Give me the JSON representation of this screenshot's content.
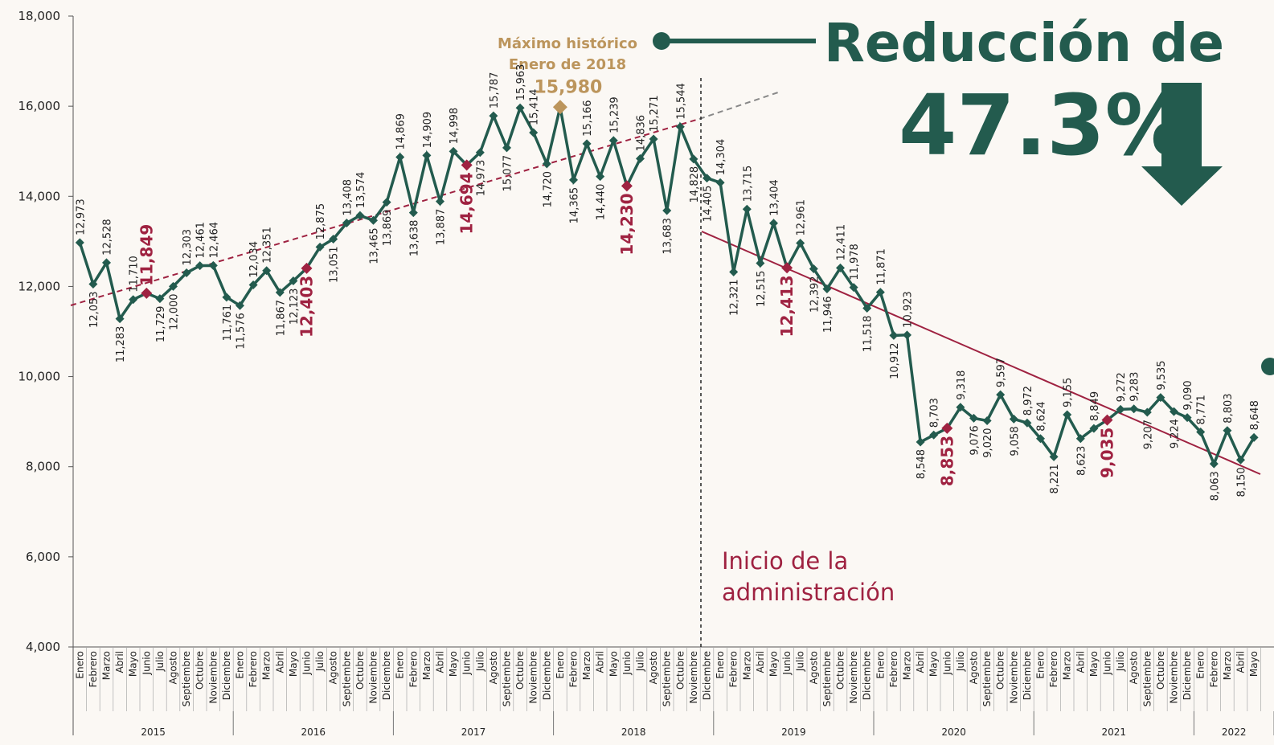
{
  "chart_data": {
    "type": "line",
    "categories": [
      "Enero",
      "Febrero",
      "Marzo",
      "Abril",
      "Mayo",
      "Junio",
      "Julio",
      "Agosto",
      "Septiembre",
      "Octubre",
      "Noviembre",
      "Diciembre",
      "Enero",
      "Febrero",
      "Marzo",
      "Abril",
      "Mayo",
      "Junio",
      "Julio",
      "Agosto",
      "Septiembre",
      "Octubre",
      "Noviembre",
      "Diciembre",
      "Enero",
      "Febrero",
      "Marzo",
      "Abril",
      "Mayo",
      "Junio",
      "Julio",
      "Agosto",
      "Septiembre",
      "Octubre",
      "Noviembre",
      "Diciembre",
      "Enero",
      "Febrero",
      "Marzo",
      "Abril",
      "Mayo",
      "Junio",
      "Julio",
      "Agosto",
      "Septiembre",
      "Octubre",
      "Noviembre",
      "Diciembre",
      "Enero",
      "Febrero",
      "Marzo",
      "Abril",
      "Mayo",
      "Junio",
      "Julio",
      "Agosto",
      "Septiembre",
      "Octubre",
      "Noviembre",
      "Diciembre",
      "Enero",
      "Febrero",
      "Marzo",
      "Abril",
      "Mayo",
      "Junio",
      "Julio",
      "Agosto",
      "Septiembre",
      "Octubre",
      "Noviembre",
      "Diciembre",
      "Enero",
      "Febrero",
      "Marzo",
      "Abril",
      "Mayo",
      "Junio",
      "Julio",
      "Agosto",
      "Septiembre",
      "Octubre",
      "Noviembre",
      "Diciembre",
      "Enero",
      "Febrero",
      "Marzo",
      "Abril",
      "Mayo"
    ],
    "year_labels": [
      "2015",
      "2016",
      "2017",
      "2018",
      "2019",
      "2020",
      "2021",
      "2022"
    ],
    "values": [
      12973,
      12053,
      12528,
      11283,
      11710,
      11849,
      11729,
      12000,
      12303,
      12461,
      12464,
      11761,
      11576,
      12034,
      12351,
      11867,
      12123,
      12403,
      12875,
      13051,
      13408,
      13574,
      13465,
      13869,
      14869,
      13638,
      14909,
      13887,
      14998,
      14694,
      14973,
      15787,
      15077,
      15963,
      15414,
      14720,
      15980,
      14365,
      15166,
      14440,
      15239,
      14230,
      14836,
      15271,
      13683,
      15544,
      14828,
      14405,
      14304,
      12321,
      13715,
      12515,
      13404,
      12413,
      12961,
      12392,
      11946,
      12411,
      11978,
      11518,
      11871,
      10912,
      10923,
      8548,
      8703,
      8853,
      9318,
      9076,
      9020,
      9597,
      9058,
      8972,
      8624,
      8221,
      9155,
      8623,
      8849,
      9035,
      9272,
      9283,
      9207,
      9535,
      9224,
      9090,
      8771,
      8063,
      8803,
      8150,
      8648
    ],
    "value_labels": [
      "12,973",
      "12,053",
      "12,528",
      "11,283",
      "11,710",
      "11,849",
      "11,729",
      "12,000",
      "12,303",
      "12,461",
      "12,464",
      "11,761",
      "11,576",
      "12,034",
      "12,351",
      "11,867",
      "12,123",
      "12,403",
      "12,875",
      "13,051",
      "13,408",
      "13,574",
      "13,465",
      "13,869",
      "14,869",
      "13,638",
      "14,909",
      "13,887",
      "14,998",
      "14,694",
      "14,973",
      "15,787",
      "15,077",
      "15,963",
      "15,414",
      "14,720",
      "15,980",
      "14,365",
      "15,166",
      "14,440",
      "15,239",
      "14,230",
      "14,836",
      "15,271",
      "13,683",
      "15,544",
      "14,828",
      "14,405",
      "14,304",
      "12,321",
      "13,715",
      "12,515",
      "13,404",
      "12,413",
      "12,961",
      "12,392",
      "11,946",
      "12,411",
      "11,978",
      "11,518",
      "11,871",
      "10,912",
      "10,923",
      "8,548",
      "8,703",
      "8,853",
      "9,318",
      "9,076",
      "9,020",
      "9,597",
      "9,058",
      "8,972",
      "8,624",
      "8,221",
      "9,155",
      "8,623",
      "8,849",
      "9,035",
      "9,272",
      "9,283",
      "9,207",
      "9,535",
      "9,224",
      "9,090",
      "8,771",
      "8,063",
      "8,803",
      "8,150",
      "8,648"
    ],
    "color": "#235b4e",
    "marker_colors": [
      "#235b4e",
      "#235b4e",
      "#235b4e",
      "#235b4e",
      "#235b4e",
      "#9f2241",
      "#235b4e",
      "#235b4e",
      "#235b4e",
      "#235b4e",
      "#235b4e",
      "#235b4e",
      "#235b4e",
      "#235b4e",
      "#235b4e",
      "#235b4e",
      "#235b4e",
      "#9f2241",
      "#235b4e",
      "#235b4e",
      "#235b4e",
      "#235b4e",
      "#235b4e",
      "#235b4e",
      "#235b4e",
      "#235b4e",
      "#235b4e",
      "#235b4e",
      "#235b4e",
      "#9f2241",
      "#235b4e",
      "#235b4e",
      "#235b4e",
      "#235b4e",
      "#235b4e",
      "#235b4e",
      "#bc955c",
      "#235b4e",
      "#235b4e",
      "#235b4e",
      "#235b4e",
      "#9f2241",
      "#235b4e",
      "#235b4e",
      "#235b4e",
      "#235b4e",
      "#235b4e",
      "#235b4e",
      "#235b4e",
      "#235b4e",
      "#235b4e",
      "#235b4e",
      "#235b4e",
      "#9f2241",
      "#235b4e",
      "#235b4e",
      "#235b4e",
      "#235b4e",
      "#235b4e",
      "#235b4e",
      "#235b4e",
      "#235b4e",
      "#235b4e",
      "#235b4e",
      "#235b4e",
      "#9f2241",
      "#235b4e",
      "#235b4e",
      "#235b4e",
      "#235b4e",
      "#235b4e",
      "#235b4e",
      "#235b4e",
      "#235b4e",
      "#235b4e",
      "#235b4e",
      "#235b4e",
      "#9f2241",
      "#235b4e",
      "#235b4e",
      "#235b4e",
      "#235b4e",
      "#235b4e",
      "#235b4e",
      "#235b4e",
      "#235b4e",
      "#235b4e",
      "#235b4e",
      "#235b4e"
    ],
    "ylim": [
      4000,
      18000
    ],
    "yticks": [
      {
        "value": 4000,
        "label": "4,000"
      },
      {
        "value": 6000,
        "label": "6,000"
      },
      {
        "value": 8000,
        "label": "8,000"
      },
      {
        "value": 10000,
        "label": "10,000"
      },
      {
        "value": 12000,
        "label": "12,000"
      },
      {
        "value": 14000,
        "label": "14,000"
      },
      {
        "value": 16000,
        "label": "16,000"
      },
      {
        "value": 18000,
        "label": "18,000"
      }
    ],
    "annotations": {
      "max_title": "Máximo histórico",
      "max_subtitle": "Enero de 2018",
      "reduction_title": "Reducción de",
      "reduction_value": "47.3%",
      "admin_line1": "Inicio de la",
      "admin_line2": "administración"
    }
  }
}
